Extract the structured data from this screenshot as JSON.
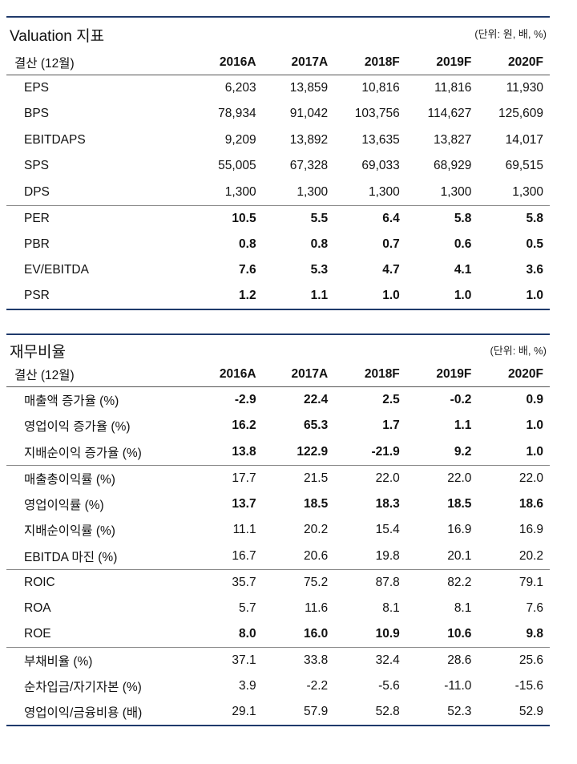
{
  "valuation": {
    "title": "Valuation 지표",
    "unit": "(단위: 원, 배, %)",
    "headers": [
      "결산 (12월)",
      "2016A",
      "2017A",
      "2018F",
      "2019F",
      "2020F"
    ],
    "rows": [
      {
        "label": "EPS",
        "values": [
          "6,203",
          "13,859",
          "10,816",
          "11,816",
          "11,930"
        ],
        "bold": false,
        "group_start": false
      },
      {
        "label": "BPS",
        "values": [
          "78,934",
          "91,042",
          "103,756",
          "114,627",
          "125,609"
        ],
        "bold": false,
        "group_start": false
      },
      {
        "label": "EBITDAPS",
        "values": [
          "9,209",
          "13,892",
          "13,635",
          "13,827",
          "14,017"
        ],
        "bold": false,
        "group_start": false
      },
      {
        "label": "SPS",
        "values": [
          "55,005",
          "67,328",
          "69,033",
          "68,929",
          "69,515"
        ],
        "bold": false,
        "group_start": false
      },
      {
        "label": "DPS",
        "values": [
          "1,300",
          "1,300",
          "1,300",
          "1,300",
          "1,300"
        ],
        "bold": false,
        "group_start": false
      },
      {
        "label": "PER",
        "values": [
          "10.5",
          "5.5",
          "6.4",
          "5.8",
          "5.8"
        ],
        "bold": true,
        "group_start": true
      },
      {
        "label": "PBR",
        "values": [
          "0.8",
          "0.8",
          "0.7",
          "0.6",
          "0.5"
        ],
        "bold": true,
        "group_start": false
      },
      {
        "label": "EV/EBITDA",
        "values": [
          "7.6",
          "5.3",
          "4.7",
          "4.1",
          "3.6"
        ],
        "bold": true,
        "group_start": false
      },
      {
        "label": "PSR",
        "values": [
          "1.2",
          "1.1",
          "1.0",
          "1.0",
          "1.0"
        ],
        "bold": true,
        "group_start": false
      }
    ]
  },
  "ratios": {
    "title": "재무비율",
    "unit": "(단위: 배, %)",
    "headers": [
      "결산 (12월)",
      "2016A",
      "2017A",
      "2018F",
      "2019F",
      "2020F"
    ],
    "rows": [
      {
        "label": "매출액 증가율 (%)",
        "values": [
          "-2.9",
          "22.4",
          "2.5",
          "-0.2",
          "0.9"
        ],
        "bold": true,
        "group_start": false
      },
      {
        "label": "영업이익 증가율 (%)",
        "values": [
          "16.2",
          "65.3",
          "1.7",
          "1.1",
          "1.0"
        ],
        "bold": true,
        "group_start": false
      },
      {
        "label": "지배순이익 증가율 (%)",
        "values": [
          "13.8",
          "122.9",
          "-21.9",
          "9.2",
          "1.0"
        ],
        "bold": true,
        "group_start": false
      },
      {
        "label": "매출총이익률 (%)",
        "values": [
          "17.7",
          "21.5",
          "22.0",
          "22.0",
          "22.0"
        ],
        "bold": false,
        "group_start": true
      },
      {
        "label": "영업이익률 (%)",
        "values": [
          "13.7",
          "18.5",
          "18.3",
          "18.5",
          "18.6"
        ],
        "bold": true,
        "group_start": false
      },
      {
        "label": "지배순이익률 (%)",
        "values": [
          "11.1",
          "20.2",
          "15.4",
          "16.9",
          "16.9"
        ],
        "bold": false,
        "group_start": false
      },
      {
        "label": "EBITDA 마진 (%)",
        "values": [
          "16.7",
          "20.6",
          "19.8",
          "20.1",
          "20.2"
        ],
        "bold": false,
        "group_start": false
      },
      {
        "label": "ROIC",
        "values": [
          "35.7",
          "75.2",
          "87.8",
          "82.2",
          "79.1"
        ],
        "bold": false,
        "group_start": true
      },
      {
        "label": "ROA",
        "values": [
          "5.7",
          "11.6",
          "8.1",
          "8.1",
          "7.6"
        ],
        "bold": false,
        "group_start": false
      },
      {
        "label": "ROE",
        "values": [
          "8.0",
          "16.0",
          "10.9",
          "10.6",
          "9.8"
        ],
        "bold": true,
        "group_start": false
      },
      {
        "label": "부채비율 (%)",
        "values": [
          "37.1",
          "33.8",
          "32.4",
          "28.6",
          "25.6"
        ],
        "bold": false,
        "group_start": true
      },
      {
        "label": "순차입금/자기자본 (%)",
        "values": [
          "3.9",
          "-2.2",
          "-5.6",
          "-11.0",
          "-15.6"
        ],
        "bold": false,
        "group_start": false
      },
      {
        "label": "영업이익/금융비용 (배)",
        "values": [
          "29.1",
          "57.9",
          "52.8",
          "52.3",
          "52.9"
        ],
        "bold": false,
        "group_start": false
      }
    ]
  }
}
